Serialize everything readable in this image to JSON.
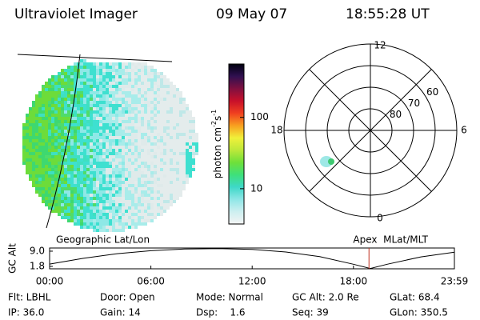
{
  "header": {
    "title": "Ultraviolet Imager",
    "date": "09 May 07",
    "time": "18:55:28 UT"
  },
  "colorbar": {
    "label_parts": [
      "photon cm",
      "-2",
      "s",
      "-1"
    ],
    "log": true,
    "ylim": [
      3.2,
      560
    ],
    "yticks": [
      10,
      100
    ],
    "colors": [
      "#f4f4f4",
      "#cdeff0",
      "#8ee6e6",
      "#3ed8c8",
      "#3ee07a",
      "#6fe03a",
      "#bde83a",
      "#f0f03a",
      "#f8a020",
      "#f04020",
      "#c8102a",
      "#801040",
      "#301050",
      "#000010"
    ]
  },
  "polar": {
    "type": "polar",
    "theta_ticks": [
      12,
      18,
      6,
      0
    ],
    "r_ticks": [
      80,
      70,
      60
    ],
    "rlim": [
      90,
      50
    ]
  },
  "orbit": {
    "type": "line",
    "ylabel": "GC Alt",
    "left_label": "Geographic Lat/Lon",
    "right_label": "Apex  MLat/MLT",
    "xlim": [
      0,
      23.98
    ],
    "xticks": [
      {
        "value": 0,
        "label": "00:00"
      },
      {
        "value": 6,
        "label": "06:00"
      },
      {
        "value": 12,
        "label": "12:00"
      },
      {
        "value": 18,
        "label": "18:00"
      },
      {
        "value": 23.98,
        "label": "23:59"
      }
    ],
    "ylim": [
      0.66,
      10.5
    ],
    "yticks": [
      {
        "value": 9,
        "label": "9.0"
      },
      {
        "value": 1.8,
        "label": "1.8"
      }
    ],
    "x": [
      0,
      2,
      4,
      6,
      8,
      10,
      12,
      14,
      16,
      18,
      19,
      20,
      22,
      23.98
    ],
    "values": [
      2.9,
      5.6,
      7.8,
      9.2,
      10.0,
      10.2,
      9.8,
      8.6,
      6.4,
      2.8,
      0.8,
      2.8,
      6.3,
      8.5
    ],
    "marker_x": 18.92,
    "color": "#000000",
    "marker_color": "#c03020"
  },
  "footer": {
    "rows": [
      [
        "Flt: LBHL",
        "Door: Open",
        "Mode: Normal",
        "GC Alt: 2.0 Re",
        "GLat: 68.4"
      ],
      [
        "IP: 36.0",
        "Gain: 14",
        "Dsp:    1.6",
        "Seq: 39",
        "GLon: 350.5"
      ]
    ]
  }
}
